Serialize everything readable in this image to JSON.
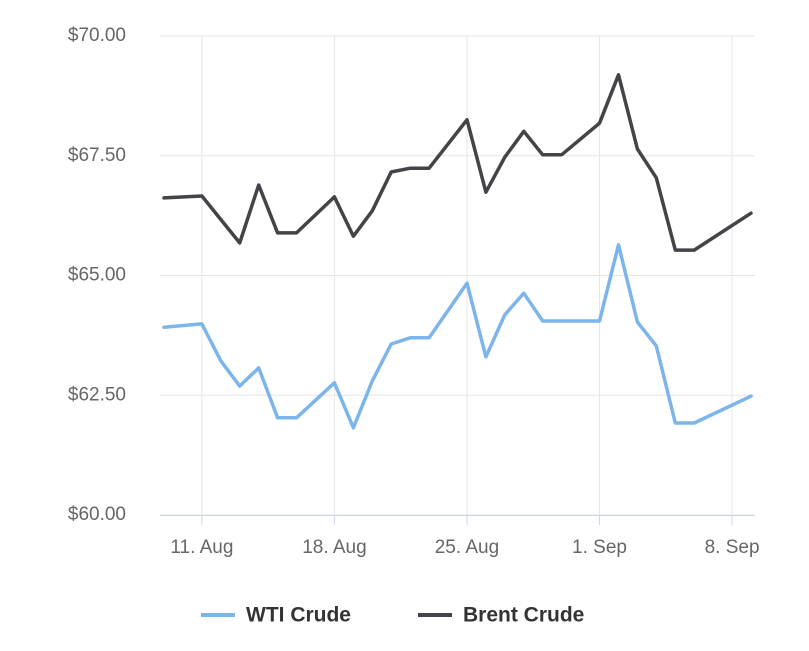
{
  "chart_data": {
    "type": "line",
    "x": [
      "08-09",
      "08-11",
      "08-12",
      "08-13",
      "08-14",
      "08-15",
      "08-16",
      "08-18",
      "08-19",
      "08-20",
      "08-21",
      "08-22",
      "08-23",
      "08-25",
      "08-26",
      "08-27",
      "08-28",
      "08-29",
      "08-30",
      "09-01",
      "09-02",
      "09-03",
      "09-04",
      "09-05",
      "09-06",
      "09-09"
    ],
    "series": [
      {
        "name": "WTI Crude",
        "color": "#7cb5ec",
        "values": [
          63.92,
          63.99,
          63.22,
          62.69,
          63.07,
          62.03,
          62.03,
          62.76,
          61.82,
          62.8,
          63.57,
          63.7,
          63.7,
          64.84,
          63.3,
          64.18,
          64.63,
          64.05,
          64.05,
          64.05,
          65.64,
          64.03,
          63.53,
          61.92,
          61.92,
          62.48
        ]
      },
      {
        "name": "Brent Crude",
        "color": "#434348",
        "values": [
          66.62,
          66.66,
          66.17,
          65.68,
          66.89,
          65.89,
          65.89,
          66.64,
          65.82,
          66.35,
          67.16,
          67.24,
          67.24,
          68.25,
          66.74,
          67.47,
          68.01,
          67.52,
          67.52,
          68.18,
          69.19,
          67.64,
          67.04,
          65.53,
          65.53,
          66.3
        ]
      }
    ],
    "xlim": [
      "08-09",
      "09-09"
    ],
    "xticks": [
      {
        "value": "08-11",
        "label": "11. Aug"
      },
      {
        "value": "08-18",
        "label": "18. Aug"
      },
      {
        "value": "08-25",
        "label": "25. Aug"
      },
      {
        "value": "09-01",
        "label": "1. Sep"
      },
      {
        "value": "09-08",
        "label": "8. Sep"
      }
    ],
    "ylim": [
      60,
      70
    ],
    "yticks": [
      {
        "value": 60,
        "label": "$60.00"
      },
      {
        "value": 62.5,
        "label": "$62.50"
      },
      {
        "value": 65,
        "label": "$65.00"
      },
      {
        "value": 67.5,
        "label": "$67.50"
      },
      {
        "value": 70,
        "label": "$70.00"
      }
    ],
    "grid": true,
    "legend": "bottom"
  }
}
